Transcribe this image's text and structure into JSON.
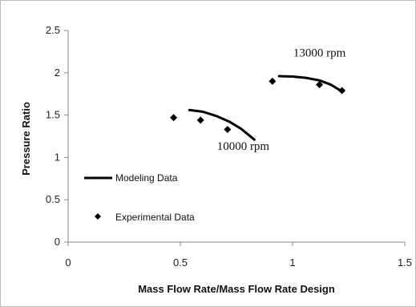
{
  "chart_data": {
    "type": "scatter",
    "title": "",
    "xlabel": "Mass Flow Rate/Mass Flow Rate Design",
    "ylabel": "Pressure Ratio",
    "xlim": [
      0,
      1.5
    ],
    "ylim": [
      0,
      2.5
    ],
    "x_ticks": [
      "0",
      "0.5",
      "1",
      "1.5"
    ],
    "y_ticks": [
      "0",
      "0.5",
      "1",
      "1.5",
      "2",
      "2.5"
    ],
    "grid": false,
    "legend_placement": "bottom-left",
    "series": [
      {
        "name": "Modeling Data",
        "style": "line",
        "color": "#000000",
        "segments": [
          {
            "x": [
              0.54,
              0.6,
              0.66,
              0.72,
              0.77,
              0.83
            ],
            "y": [
              1.56,
              1.54,
              1.49,
              1.42,
              1.34,
              1.21
            ]
          },
          {
            "x": [
              0.94,
              1.0,
              1.06,
              1.12,
              1.17,
              1.22
            ],
            "y": [
              1.96,
              1.955,
              1.94,
              1.91,
              1.86,
              1.78
            ]
          }
        ]
      },
      {
        "name": "Experimental Data",
        "style": "marker",
        "marker": "diamond",
        "color": "#000000",
        "x": [
          0.47,
          0.59,
          0.71,
          0.91,
          1.12,
          1.22
        ],
        "y": [
          1.47,
          1.44,
          1.33,
          1.9,
          1.86,
          1.79
        ]
      }
    ],
    "annotations": [
      {
        "text": "10000 rpm",
        "x": 0.78,
        "y": 1.09
      },
      {
        "text": "13000 rpm",
        "x": 1.12,
        "y": 2.19
      }
    ]
  }
}
